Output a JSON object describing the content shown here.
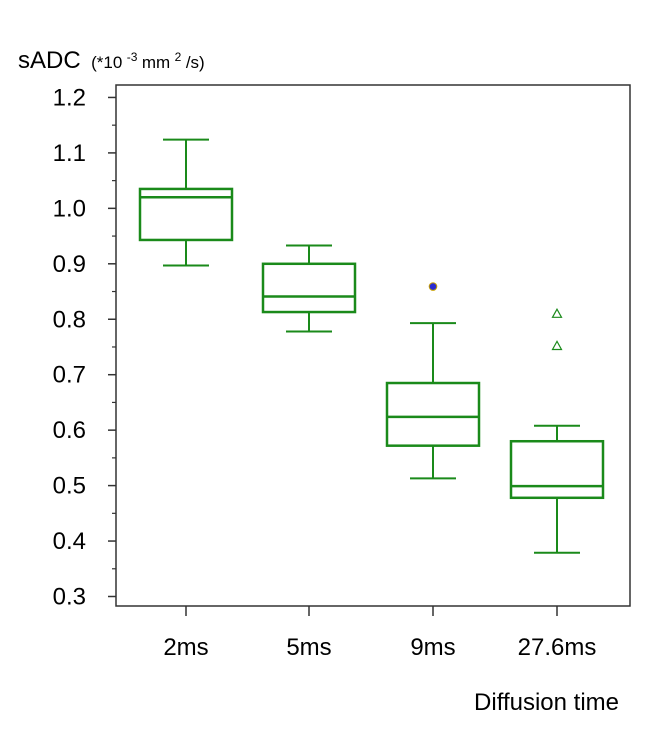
{
  "chart_data": {
    "type": "box",
    "ylabel_main": "sADC",
    "ylabel_unit_open": "(*10",
    "ylabel_unit_exp1": "-3",
    "ylabel_unit_mid": " mm",
    "ylabel_unit_exp2": "2",
    "ylabel_unit_close": "/s)",
    "xlabel": "Diffusion time",
    "ylim": [
      0.3,
      1.225
    ],
    "yticks": [
      {
        "value": 0.3,
        "label": "0.3"
      },
      {
        "value": 0.4,
        "label": "0.4"
      },
      {
        "value": 0.5,
        "label": "0.5"
      },
      {
        "value": 0.6,
        "label": "0.6"
      },
      {
        "value": 0.7,
        "label": "0.7"
      },
      {
        "value": 0.8,
        "label": "0.8"
      },
      {
        "value": 0.9,
        "label": "0.9"
      },
      {
        "value": 1.0,
        "label": "1.0"
      },
      {
        "value": 1.1,
        "label": "1.1"
      },
      {
        "value": 1.2,
        "label": "1.2"
      }
    ],
    "yminor_ticks": [
      0.35,
      0.45,
      0.55,
      0.65,
      0.75,
      0.85,
      0.95,
      1.05,
      1.15
    ],
    "categories": [
      "2ms",
      "5ms",
      "9ms",
      "27.6ms"
    ],
    "boxes": [
      {
        "category": "2ms",
        "whisker_low": 0.897,
        "q1": 0.943,
        "median": 1.02,
        "q3": 1.035,
        "whisker_high": 1.124,
        "outliers": []
      },
      {
        "category": "5ms",
        "whisker_low": 0.778,
        "q1": 0.813,
        "median": 0.841,
        "q3": 0.9,
        "whisker_high": 0.933,
        "outliers": []
      },
      {
        "category": "9ms",
        "whisker_low": 0.513,
        "q1": 0.572,
        "median": 0.624,
        "q3": 0.685,
        "whisker_high": 0.793,
        "outliers": [
          {
            "value": 0.859,
            "marker": "dot"
          }
        ]
      },
      {
        "category": "27.6ms",
        "whisker_low": 0.379,
        "q1": 0.478,
        "median": 0.499,
        "q3": 0.58,
        "whisker_high": 0.608,
        "outliers": [
          {
            "value": 0.81,
            "marker": "triangle"
          },
          {
            "value": 0.752,
            "marker": "triangle"
          }
        ]
      }
    ],
    "box_color": "#1a8a1a",
    "outlier_dot_color": "#2b2bd0",
    "outlier_dot_edge": "#c8a000",
    "grid": false,
    "legend": "none"
  }
}
